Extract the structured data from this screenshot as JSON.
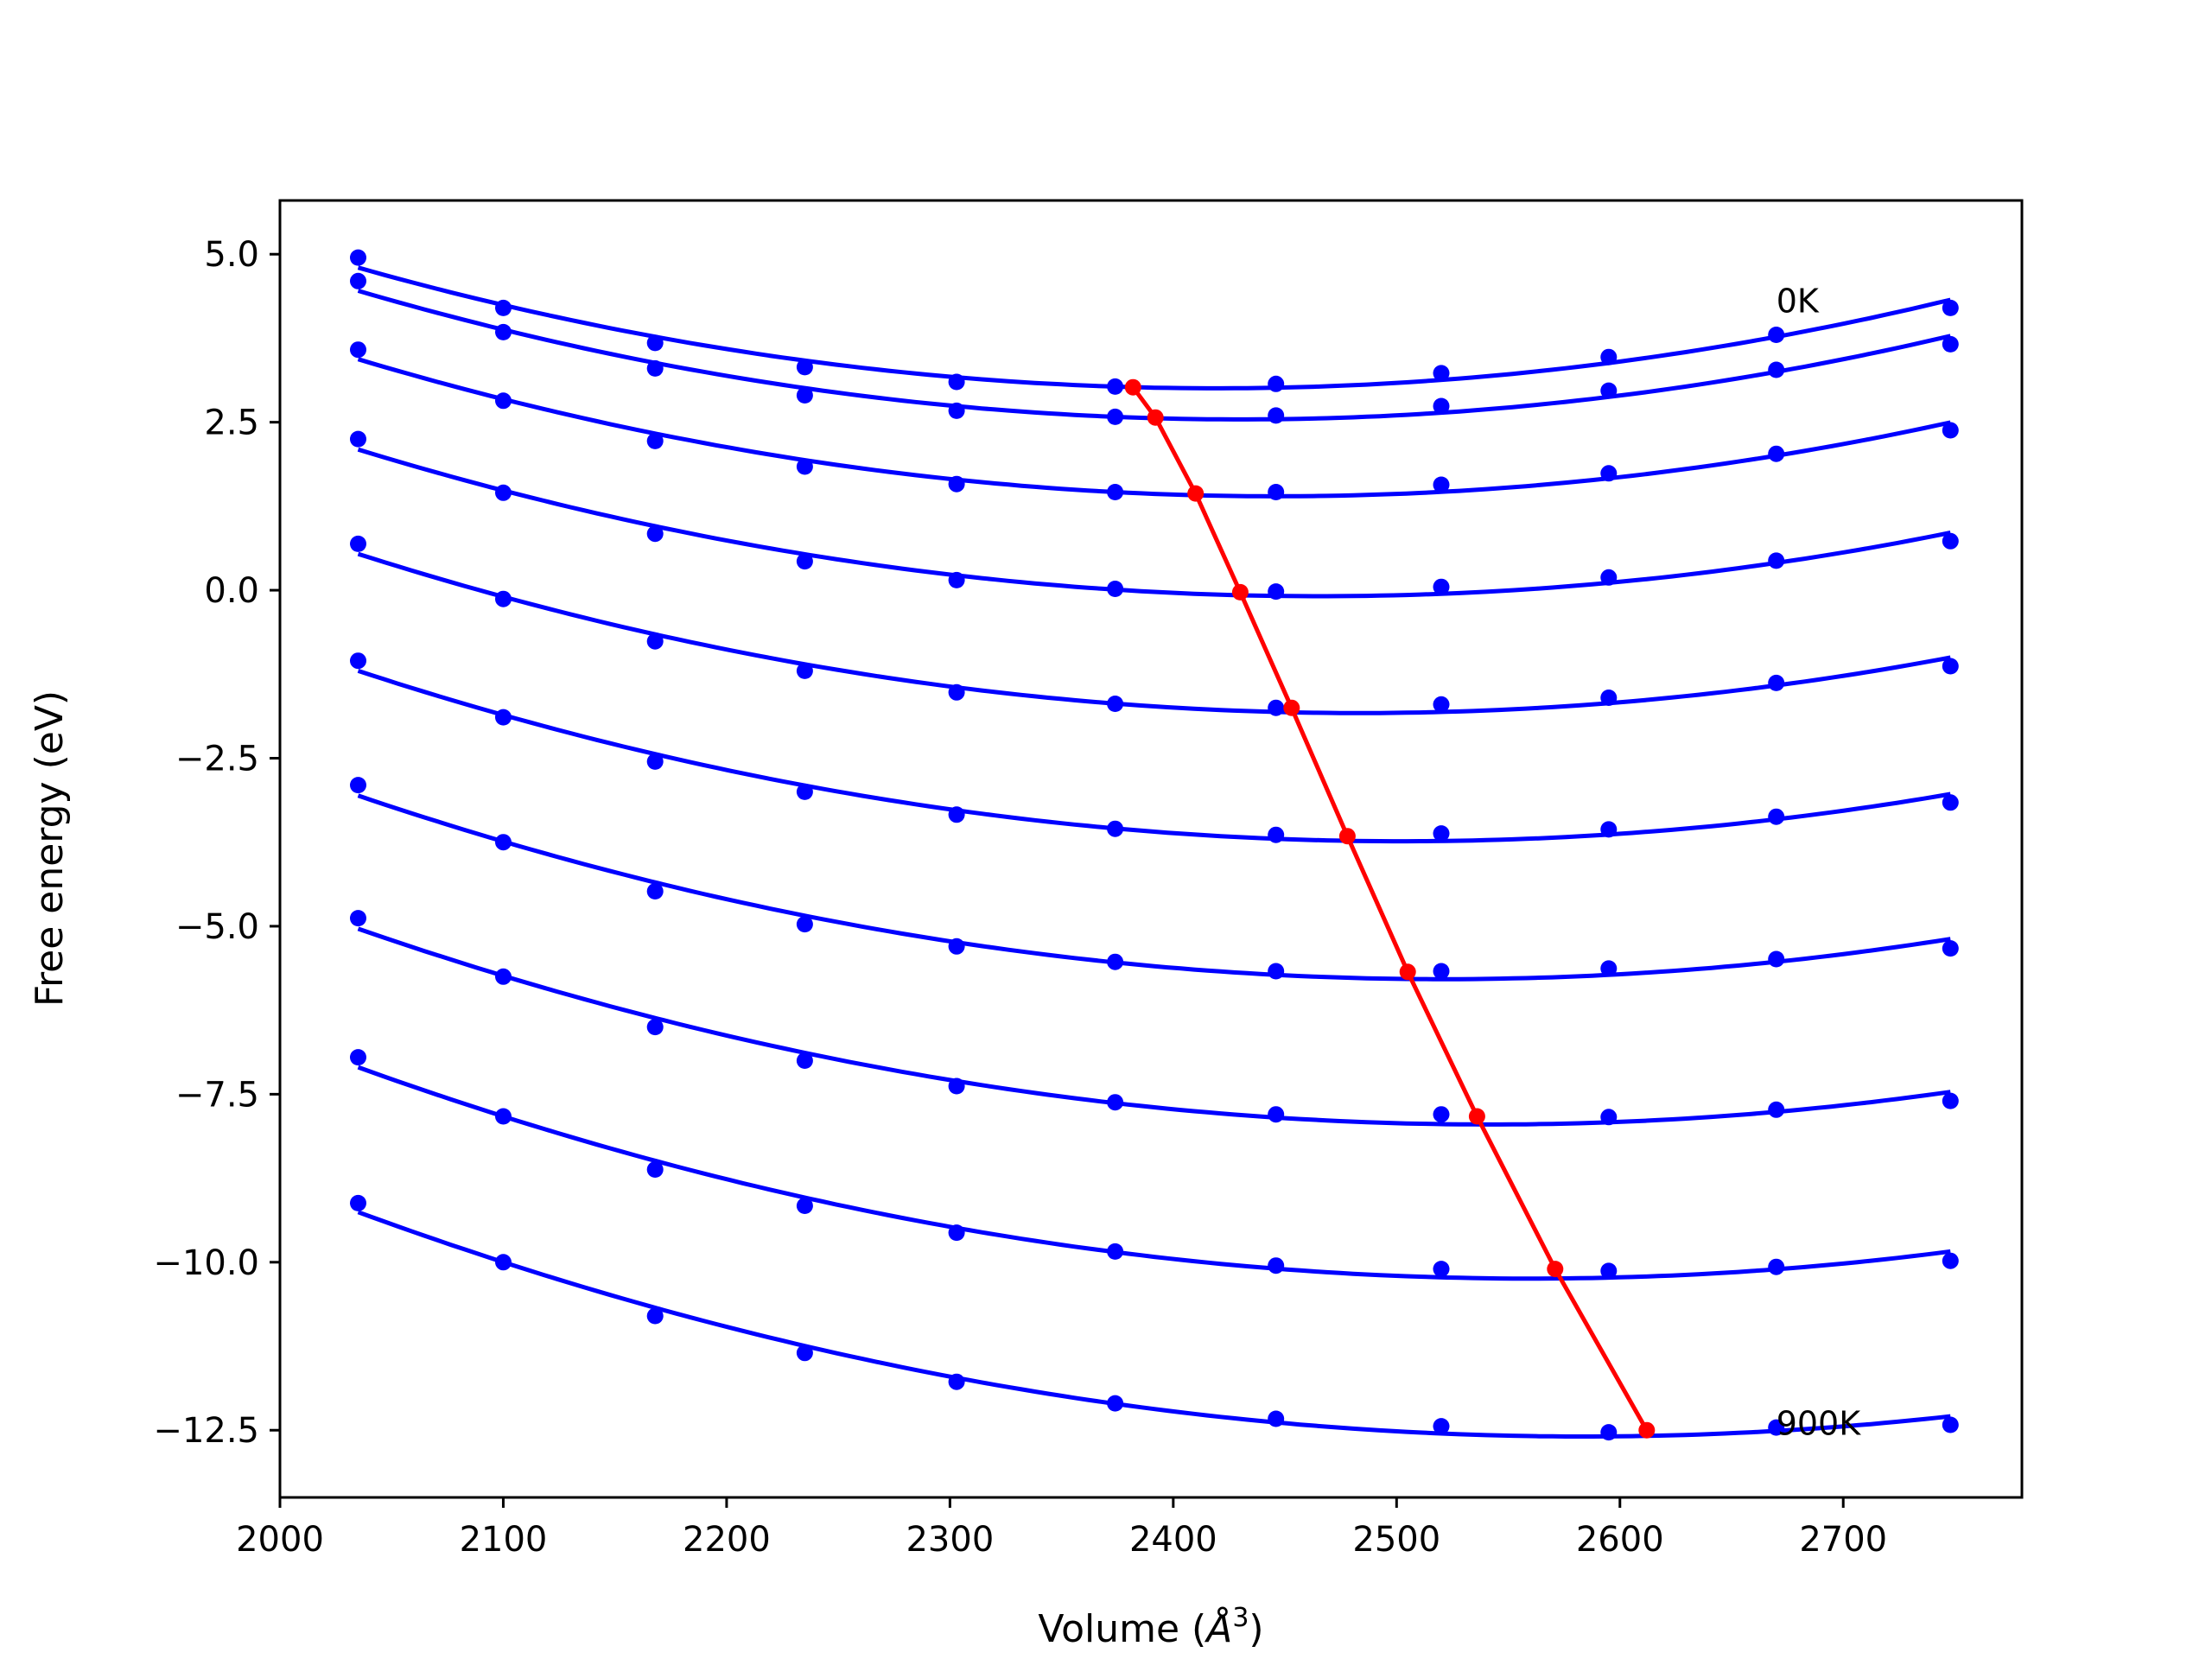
{
  "chart_data": {
    "type": "line",
    "title": "",
    "xlabel_main": "Volume (",
    "xlabel_unit": "Å",
    "xlabel_exp": "3",
    "xlabel_close": ")",
    "ylabel": "Free energy (eV)",
    "xlim": [
      2000,
      2780
    ],
    "ylim": [
      -13.5,
      5.8
    ],
    "x_ticks": [
      2000,
      2100,
      2200,
      2300,
      2400,
      2500,
      2600,
      2700
    ],
    "x_tick_labels": [
      "2000",
      "2100",
      "2200",
      "2300",
      "2400",
      "2500",
      "2600",
      "2700"
    ],
    "y_ticks": [
      5.0,
      2.5,
      0.0,
      -2.5,
      -5.0,
      -7.5,
      -10.0,
      -12.5
    ],
    "y_tick_labels": [
      "5.0",
      "2.5",
      "0.0",
      "−2.5",
      "−5.0",
      "−7.5",
      "−10.0",
      "−12.5"
    ],
    "grid": false,
    "legend": "none",
    "annotations": [
      {
        "text": "0K",
        "x": 2670,
        "y": 4.3
      },
      {
        "text": "900K",
        "x": 2670,
        "y": -12.4
      }
    ],
    "colors": {
      "series": "#0000ff",
      "minima": "#ff0000",
      "axes": "#000000"
    },
    "x": [
      2035,
      2100,
      2168,
      2235,
      2303,
      2374,
      2446,
      2520,
      2595,
      2670,
      2748
    ],
    "series": [
      {
        "values": [
          4.95,
          4.2,
          3.68,
          3.32,
          3.1,
          3.03,
          3.07,
          3.23,
          3.47,
          3.8,
          4.2
        ]
      },
      {
        "values": [
          4.6,
          3.84,
          3.3,
          2.9,
          2.67,
          2.58,
          2.6,
          2.74,
          2.97,
          3.28,
          3.66
        ]
      },
      {
        "values": [
          3.58,
          2.82,
          2.22,
          1.84,
          1.58,
          1.46,
          1.46,
          1.57,
          1.74,
          2.03,
          2.38
        ]
      },
      {
        "values": [
          2.25,
          1.45,
          0.84,
          0.43,
          0.15,
          0.02,
          -0.02,
          0.05,
          0.19,
          0.44,
          0.73
        ]
      },
      {
        "values": [
          0.69,
          -0.13,
          -0.76,
          -1.2,
          -1.52,
          -1.69,
          -1.75,
          -1.7,
          -1.6,
          -1.38,
          -1.13
        ]
      },
      {
        "values": [
          -1.05,
          -1.89,
          -2.55,
          -3.0,
          -3.34,
          -3.55,
          -3.64,
          -3.62,
          -3.56,
          -3.37,
          -3.16
        ]
      },
      {
        "values": [
          -2.9,
          -3.75,
          -4.48,
          -4.97,
          -5.3,
          -5.53,
          -5.67,
          -5.67,
          -5.63,
          -5.49,
          -5.33
        ]
      },
      {
        "values": [
          -4.88,
          -5.75,
          -6.5,
          -7.0,
          -7.38,
          -7.62,
          -7.8,
          -7.8,
          -7.84,
          -7.73,
          -7.6
        ]
      },
      {
        "values": [
          -6.95,
          -7.83,
          -8.62,
          -9.16,
          -9.56,
          -9.84,
          -10.05,
          -10.1,
          -10.13,
          -10.07,
          -9.98
        ]
      },
      {
        "values": [
          -9.12,
          -10.0,
          -10.8,
          -11.35,
          -11.78,
          -12.1,
          -12.33,
          -12.44,
          -12.53,
          -12.46,
          -12.42
        ]
      }
    ],
    "minima_line": {
      "x": [
        2382,
        2392,
        2410,
        2430,
        2453,
        2478,
        2505,
        2536,
        2571,
        2612
      ],
      "y": [
        3.02,
        2.57,
        1.44,
        -0.03,
        -1.75,
        -3.66,
        -5.68,
        -7.83,
        -10.1,
        -12.5
      ]
    }
  }
}
